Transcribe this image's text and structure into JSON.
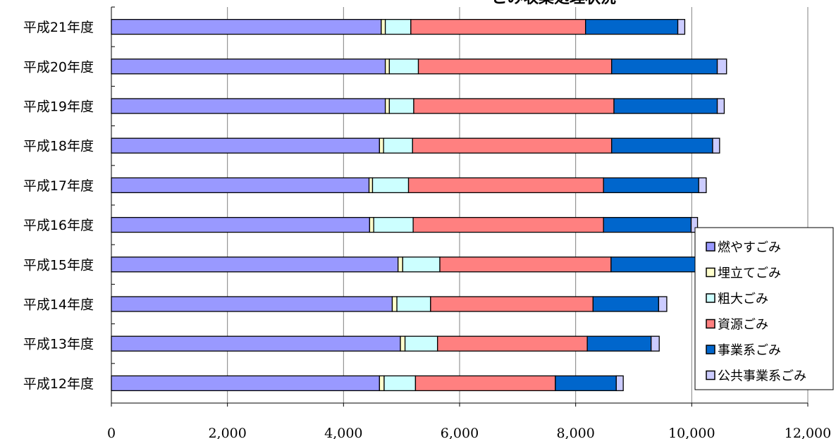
{
  "chart_data": {
    "type": "bar",
    "orientation": "horizontal",
    "stacked": true,
    "title": "ごみ収集処理状況",
    "categories": [
      "平成21年度",
      "平成20年度",
      "平成19年度",
      "平成18年度",
      "平成17年度",
      "平成16年度",
      "平成15年度",
      "平成14年度",
      "平成13年度",
      "平成12年度"
    ],
    "series": [
      {
        "name": "燃やすごみ",
        "color": "#9999ff",
        "values": [
          4650,
          4720,
          4720,
          4620,
          4440,
          4450,
          4940,
          4840,
          4980,
          4620
        ]
      },
      {
        "name": "埋立てごみ",
        "color": "#ffffcc",
        "values": [
          70,
          70,
          70,
          70,
          60,
          70,
          80,
          80,
          80,
          80
        ]
      },
      {
        "name": "粗大ごみ",
        "color": "#ccffff",
        "values": [
          440,
          500,
          420,
          500,
          620,
          680,
          640,
          580,
          560,
          540
        ]
      },
      {
        "name": "資源ごみ",
        "color": "#ff8080",
        "values": [
          3010,
          3330,
          3450,
          3430,
          3360,
          3280,
          2950,
          2800,
          2580,
          2410
        ]
      },
      {
        "name": "事業系ごみ",
        "color": "#0066cc",
        "values": [
          1590,
          1820,
          1780,
          1740,
          1640,
          1510,
          1470,
          1130,
          1100,
          1050
        ]
      },
      {
        "name": "公共事業系ごみ",
        "color": "#ccccff",
        "values": [
          120,
          160,
          120,
          120,
          130,
          110,
          110,
          140,
          140,
          120
        ]
      }
    ],
    "x_ticks": [
      "0",
      "2,000",
      "4,000",
      "6,000",
      "8,000",
      "10,000",
      "12,000"
    ],
    "xlim": [
      0,
      12000
    ],
    "grid": "vertical",
    "legend_position": "right"
  }
}
